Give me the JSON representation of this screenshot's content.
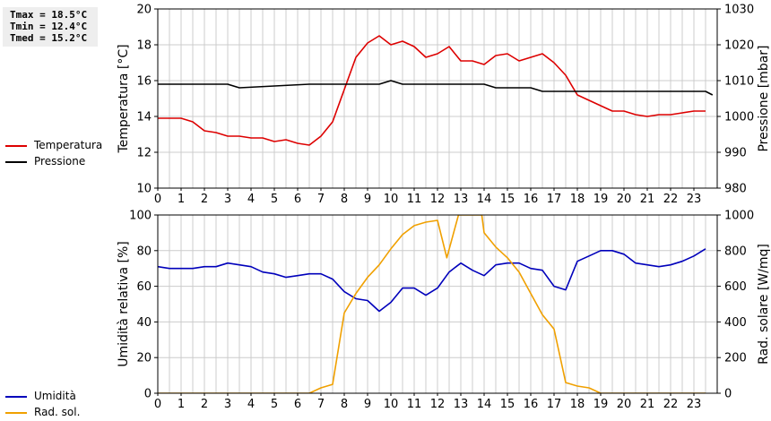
{
  "stats": {
    "tmax": "Tmax = 18.5°C",
    "tmin": "Tmin = 12.4°C",
    "tmed": "Tmed = 15.2°C"
  },
  "chart_data": [
    {
      "type": "line",
      "x_ticks": [
        "0",
        "1",
        "2",
        "3",
        "4",
        "5",
        "6",
        "7",
        "8",
        "9",
        "10",
        "11",
        "12",
        "13",
        "14",
        "15",
        "16",
        "17",
        "18",
        "19",
        "20",
        "21",
        "22",
        "23"
      ],
      "xlim": [
        0,
        24
      ],
      "grid": true,
      "ylabel_left": "Temperatura [°C]",
      "ylim_left": [
        10,
        20
      ],
      "yticks_left": [
        "10",
        "12",
        "14",
        "16",
        "18",
        "20"
      ],
      "ylabel_right": "Pressione [mbar]",
      "ylim_right": [
        980,
        1030
      ],
      "yticks_right": [
        "980",
        "990",
        "1000",
        "1010",
        "1020",
        "1030"
      ],
      "legend": [
        {
          "name": "Temperatura",
          "color": "#dd0000"
        },
        {
          "name": "Pressione",
          "color": "#000000"
        }
      ],
      "series": [
        {
          "name": "Temperatura",
          "color": "#dd0000",
          "axis": "left",
          "x": [
            0,
            0.5,
            1,
            1.5,
            2,
            2.5,
            3,
            3.5,
            4,
            4.5,
            5,
            5.5,
            6,
            6.5,
            7,
            7.5,
            8,
            8.5,
            9,
            9.5,
            10,
            10.5,
            11,
            11.5,
            12,
            12.5,
            13,
            13.5,
            14,
            14.5,
            15,
            15.5,
            16,
            16.5,
            17,
            17.5,
            18,
            18.5,
            19,
            19.5,
            20,
            20.5,
            21,
            21.5,
            22,
            22.5,
            23,
            23.5
          ],
          "values": [
            13.9,
            13.9,
            13.9,
            13.7,
            13.2,
            13.1,
            12.9,
            12.9,
            12.8,
            12.8,
            12.6,
            12.7,
            12.5,
            12.4,
            12.9,
            13.7,
            15.5,
            17.3,
            18.1,
            18.5,
            18.0,
            18.2,
            17.9,
            17.3,
            17.5,
            17.9,
            17.1,
            17.1,
            16.9,
            17.4,
            17.5,
            17.1,
            17.3,
            17.5,
            17.0,
            16.3,
            15.2,
            14.9,
            14.6,
            14.3,
            14.3,
            14.1,
            14.0,
            14.1,
            14.1,
            14.2,
            14.3,
            14.3
          ]
        },
        {
          "name": "Pressione",
          "color": "#000000",
          "axis": "right",
          "x": [
            0,
            3,
            3.5,
            6.5,
            9.5,
            10,
            10.5,
            14,
            14.5,
            16,
            16.5,
            23.5,
            23.8
          ],
          "values": [
            1009,
            1009,
            1008,
            1009,
            1009,
            1010,
            1009,
            1009,
            1008,
            1008,
            1007,
            1007,
            1006
          ]
        }
      ]
    },
    {
      "type": "line",
      "x_ticks": [
        "0",
        "1",
        "2",
        "3",
        "4",
        "5",
        "6",
        "7",
        "8",
        "9",
        "10",
        "11",
        "12",
        "13",
        "14",
        "15",
        "16",
        "17",
        "18",
        "19",
        "20",
        "21",
        "22",
        "23"
      ],
      "xlim": [
        0,
        24
      ],
      "grid": true,
      "ylabel_left": "Umidità relativa [%]",
      "ylim_left": [
        0,
        100
      ],
      "yticks_left": [
        "0",
        "20",
        "40",
        "60",
        "80",
        "100"
      ],
      "ylabel_right": "Rad. solare [W/mq]",
      "ylim_right": [
        0,
        1000
      ],
      "yticks_right": [
        "0",
        "200",
        "400",
        "600",
        "800",
        "1000"
      ],
      "legend": [
        {
          "name": "Umidità",
          "color": "#0000bb"
        },
        {
          "name": "Rad. sol.",
          "color": "#f0a000"
        }
      ],
      "series": [
        {
          "name": "Umidità",
          "color": "#0000bb",
          "axis": "left",
          "x": [
            0,
            0.5,
            1,
            1.5,
            2,
            2.5,
            3,
            3.5,
            4,
            4.5,
            5,
            5.5,
            6,
            6.5,
            7,
            7.5,
            8,
            8.5,
            9,
            9.5,
            10,
            10.5,
            11,
            11.5,
            12,
            12.5,
            13,
            13.5,
            14,
            14.5,
            15,
            15.5,
            16,
            16.5,
            17,
            17.5,
            18,
            18.5,
            19,
            19.5,
            20,
            20.5,
            21,
            21.5,
            22,
            22.5,
            23,
            23.5
          ],
          "values": [
            71,
            70,
            70,
            70,
            71,
            71,
            73,
            72,
            71,
            68,
            67,
            65,
            66,
            67,
            67,
            64,
            57,
            53,
            52,
            46,
            51,
            59,
            59,
            55,
            59,
            68,
            73,
            69,
            66,
            72,
            73,
            73,
            70,
            69,
            60,
            58,
            74,
            77,
            80,
            80,
            78,
            73,
            72,
            71,
            72,
            74,
            77,
            81
          ]
        },
        {
          "name": "Rad. sol.",
          "color": "#f0a000",
          "axis": "right",
          "x": [
            0,
            6.5,
            7,
            7.5,
            8,
            8.5,
            9,
            9.5,
            10,
            10.5,
            11,
            11.5,
            12,
            12.4,
            12.9,
            13,
            13.5,
            13.9,
            14,
            14.5,
            15,
            15.5,
            16,
            16.5,
            17,
            17.5,
            18,
            18.5,
            19,
            19.5,
            20,
            20.5,
            21,
            21.5,
            22,
            22.5,
            23,
            23.5
          ],
          "values": [
            0,
            0,
            30,
            50,
            450,
            560,
            650,
            720,
            810,
            890,
            940,
            960,
            970,
            760,
            1000,
            1000,
            1000,
            1000,
            900,
            820,
            760,
            680,
            560,
            440,
            360,
            60,
            40,
            30,
            0,
            0,
            0,
            0,
            0,
            0,
            0,
            0,
            0,
            0
          ]
        }
      ]
    }
  ]
}
